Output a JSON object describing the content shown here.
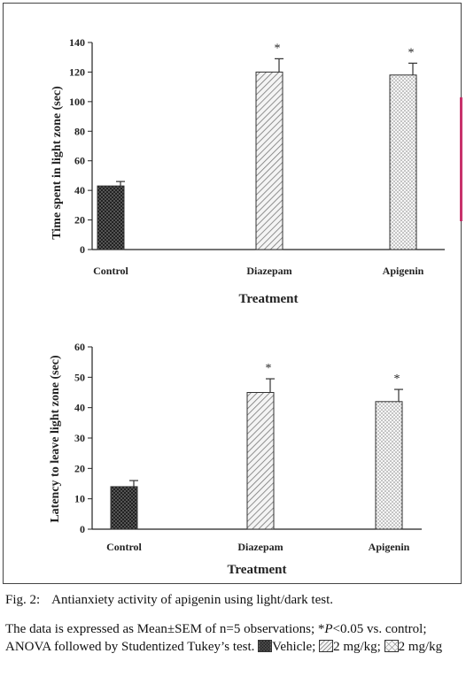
{
  "chart_data": [
    {
      "type": "bar",
      "categories": [
        "Control",
        "Diazepam",
        "Apigenin"
      ],
      "values": [
        43,
        120,
        118
      ],
      "errors": [
        3,
        9,
        8
      ],
      "significance": [
        "",
        "*",
        "*"
      ],
      "patterns": [
        "vehicle",
        "diagonal",
        "dotted"
      ],
      "xlabel": "Treatment",
      "ylabel": "Time spent in light zone (sec)",
      "ylim": [
        0,
        140
      ],
      "yticks": [
        "0",
        "20",
        "40",
        "60",
        "80",
        "100",
        "120",
        "140"
      ],
      "grid": false
    },
    {
      "type": "bar",
      "categories": [
        "Control",
        "Diazepam",
        "Apigenin"
      ],
      "values": [
        14,
        45,
        42
      ],
      "errors": [
        2,
        4.5,
        4
      ],
      "significance": [
        "",
        "*",
        "*"
      ],
      "patterns": [
        "vehicle",
        "diagonal",
        "dotted"
      ],
      "xlabel": "Treatment",
      "ylabel": "Latency to leave light zone (sec)",
      "ylim": [
        0,
        60
      ],
      "yticks": [
        "0",
        "10",
        "20",
        "30",
        "40",
        "50",
        "60"
      ],
      "grid": false
    }
  ],
  "caption": {
    "fig_number": "Fig. 2:",
    "title": "Antianxiety activity of apigenin using light/dark test.",
    "body_part1": "The data is expressed as Mean±SEM of n=5 observations; *",
    "p_symbol": "P",
    "body_part2": "<0.05 vs. control; ANOVA followed by Studentized Tukey’s test.",
    "legend_vehicle": "Vehicle;",
    "legend_dose_1": "2 mg/kg;",
    "legend_dose_2": "2 mg/kg"
  }
}
